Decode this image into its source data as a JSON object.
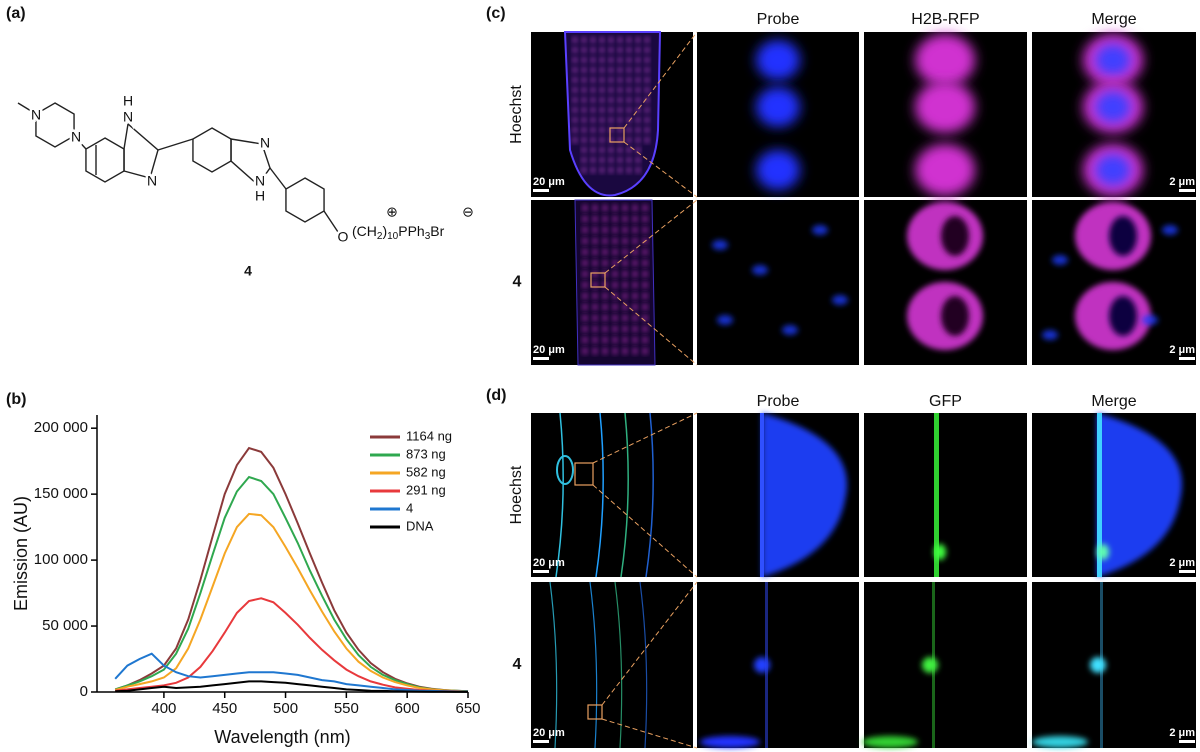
{
  "panel_labels": [
    "(a)",
    "(b)",
    "(c)",
    "(d)"
  ],
  "structure": {
    "compound": "4",
    "atoms": [
      "N",
      "N",
      "H",
      "N",
      "N",
      "N",
      "N",
      "H",
      "O"
    ],
    "chain": [
      "(CH",
      "2",
      ")",
      "10",
      "PPh",
      "3",
      "Br"
    ],
    "charges": [
      "⊕",
      "⊖"
    ]
  },
  "chart_data": {
    "type": "line",
    "x_label": "Wavelength (nm)",
    "y_label": "Emission (AU)",
    "x": [
      360,
      370,
      380,
      390,
      400,
      410,
      420,
      430,
      440,
      450,
      460,
      470,
      480,
      490,
      500,
      510,
      520,
      530,
      540,
      550,
      560,
      570,
      580,
      590,
      600,
      610,
      620,
      630,
      640,
      650
    ],
    "series": [
      {
        "name": "1164 ng",
        "color": "#8b3a3a",
        "values": [
          2000,
          5000,
          9000,
          14000,
          20000,
          33000,
          55000,
          85000,
          118000,
          150000,
          172000,
          185000,
          182000,
          170000,
          150000,
          128000,
          105000,
          83000,
          62000,
          45000,
          32000,
          22000,
          15000,
          10000,
          6500,
          4000,
          2500,
          1500,
          1000,
          500
        ]
      },
      {
        "name": "873 ng",
        "color": "#2fa84f",
        "values": [
          2000,
          5000,
          8000,
          12000,
          17000,
          29000,
          48000,
          75000,
          104000,
          132000,
          152000,
          163000,
          160000,
          150000,
          132000,
          113000,
          92000,
          73000,
          55000,
          40000,
          28000,
          19000,
          13000,
          9000,
          6000,
          3500,
          2200,
          1300,
          900,
          500
        ]
      },
      {
        "name": "582 ng",
        "color": "#f5a623",
        "values": [
          1500,
          4000,
          6000,
          8000,
          11000,
          18000,
          33000,
          55000,
          80000,
          105000,
          125000,
          135000,
          134000,
          125000,
          110000,
          94000,
          77000,
          61000,
          46000,
          33000,
          23000,
          16000,
          11000,
          7500,
          5000,
          3000,
          2000,
          1200,
          800,
          400
        ]
      },
      {
        "name": "291 ng",
        "color": "#e8393c",
        "values": [
          1000,
          2000,
          3000,
          4000,
          5000,
          7000,
          11000,
          19000,
          31000,
          45000,
          60000,
          69000,
          71000,
          68000,
          60000,
          51000,
          41000,
          32000,
          24000,
          17000,
          12000,
          8000,
          5500,
          3500,
          2500,
          1500,
          1000,
          700,
          500,
          300
        ]
      },
      {
        "name": "4",
        "color": "#1f77d0",
        "values": [
          10000,
          20000,
          25000,
          29000,
          20000,
          15000,
          12000,
          11000,
          12000,
          13000,
          14000,
          15000,
          15000,
          15000,
          14000,
          13000,
          11000,
          9000,
          8000,
          6000,
          5000,
          4000,
          3000,
          2000,
          1500,
          1000,
          800,
          600,
          400,
          300
        ]
      },
      {
        "name": "DNA",
        "color": "#000000",
        "values": [
          500,
          1000,
          2000,
          3000,
          4000,
          3000,
          3500,
          4000,
          5000,
          6000,
          7000,
          8000,
          8000,
          7500,
          7000,
          6000,
          5000,
          4000,
          3000,
          2000,
          1500,
          1000,
          800,
          600,
          400,
          300,
          200,
          200,
          100,
          100
        ]
      }
    ],
    "xlim": [
      345,
      650
    ],
    "xticks": [
      400,
      450,
      500,
      550,
      600,
      650
    ],
    "ylim": [
      0,
      210000
    ],
    "yticks": [
      0,
      {
        "value": 50000,
        "label": "50 000"
      },
      {
        "value": 100000,
        "label": "100 000"
      },
      {
        "value": 150000,
        "label": "150 000"
      },
      {
        "value": 200000,
        "label": "200 000"
      }
    ],
    "legend": "upper right"
  },
  "panel_c": {
    "columns": [
      "Probe",
      "H2B-RFP",
      "Merge"
    ],
    "rows": [
      "Hoechst",
      "4"
    ],
    "scale_bars": [
      "20 μm",
      "2 μm",
      "20 μm",
      "2 μm"
    ]
  },
  "panel_d": {
    "columns": [
      "Probe",
      "GFP",
      "Merge"
    ],
    "rows": [
      "Hoechst",
      "4"
    ],
    "scale_bars": [
      "20 μm",
      "2 μm",
      "20 μm",
      "2 μm"
    ]
  }
}
